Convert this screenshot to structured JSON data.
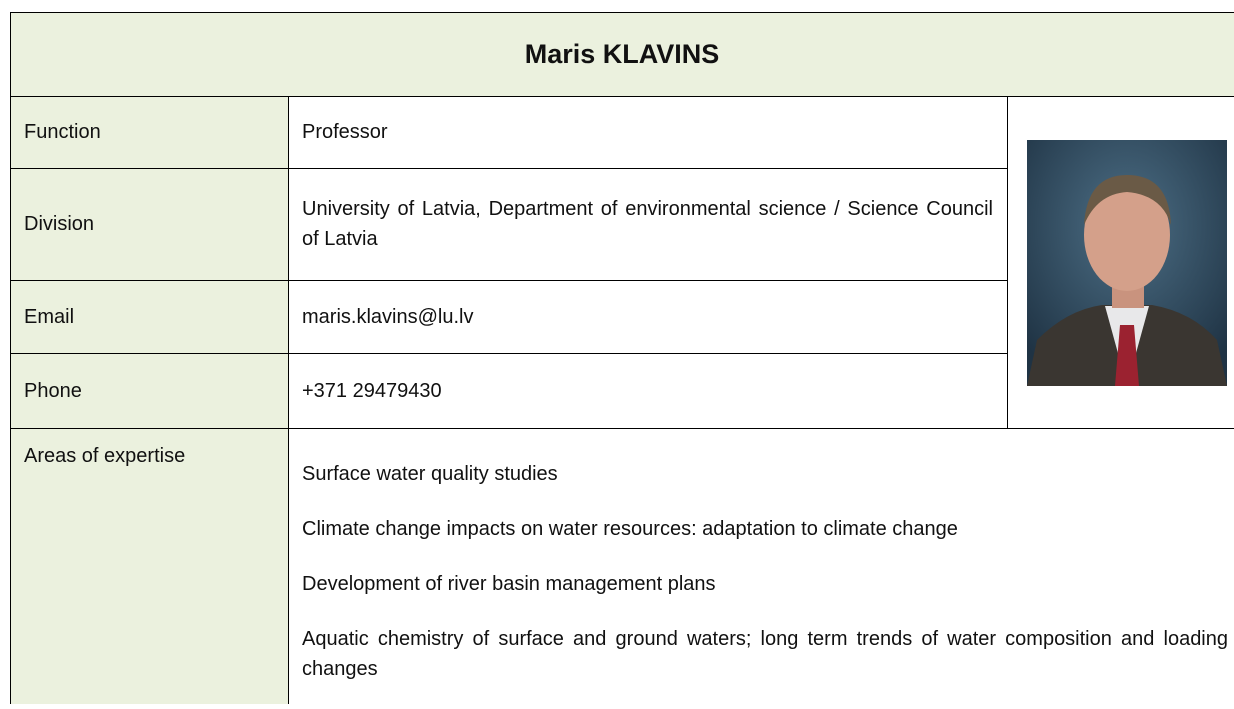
{
  "header": {
    "title": "Maris KLAVINS"
  },
  "rows": [
    {
      "label": "Function",
      "value": "Professor"
    },
    {
      "label": "Division",
      "value": "University of Latvia, Department of environmental science / Science Council of Latvia"
    },
    {
      "label": "Email",
      "value": "maris.klavins@lu.lv"
    },
    {
      "label": "Phone",
      "value": "+371 29479430"
    }
  ],
  "expertise": {
    "label": "Areas of expertise",
    "items": [
      "Surface water quality studies",
      "Climate change impacts on water resources: adaptation to climate change",
      "Development of river basin management plans",
      "Aquatic chemistry of surface and ground waters; long term trends of water composition and loading changes"
    ]
  }
}
